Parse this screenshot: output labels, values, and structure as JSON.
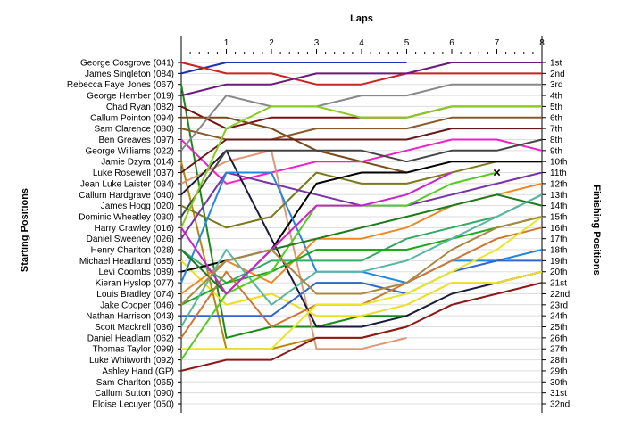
{
  "chart_data": {
    "type": "line",
    "title": "Laps",
    "ylabel": "Starting Positions",
    "y2label": "Finishing Positions",
    "x": [
      0,
      1,
      2,
      3,
      4,
      5,
      6,
      7,
      8
    ],
    "x_tick_labels": [
      "1",
      "2",
      "3",
      "4",
      "5",
      "6",
      "7",
      "8"
    ],
    "y_range": [
      1,
      32
    ],
    "grid": "horizontal",
    "starting_positions": [
      "George Cosgrove (041)",
      "James Singleton (084)",
      "Rebecca Faye Jones (067)",
      "George Hember (019)",
      "Chad Ryan (082)",
      "Callum Pointon (094)",
      "Sam Clarence (080)",
      "Ben Greaves (097)",
      "George Williams (022)",
      "Jamie Dzyra (014)",
      "Luke Rosewell (037)",
      "Jean Luke Laister (034)",
      "Callum Hardgrave (040)",
      "James Hogg (020)",
      "Dominic Wheatley (030)",
      "Harry Crawley (016)",
      "Daniel Sweeney (026)",
      "Henry Charlton (028)",
      "Michael Headland (055)",
      "Levi Coombs (089)",
      "Kieran Hyslop (077)",
      "Louis Bradley (074)",
      "Jake Cooper (046)",
      "Nathan Harrison (043)",
      "Scott Mackrell (036)",
      "Daniel Headlam (062)",
      "Thomas Taylor (099)",
      "Luke Whitworth (092)",
      "Ashley Hand (GP)",
      "Sam Charlton (065)",
      "Callum Sutton (090)",
      "Eloise Lecuyer (050)"
    ],
    "finishing_positions": [
      "1st",
      "2nd",
      "3rd",
      "4th",
      "5th",
      "6th",
      "7th",
      "8th",
      "9th",
      "10th",
      "11th",
      "12th",
      "13th",
      "14th",
      "15th",
      "16th",
      "17th",
      "18th",
      "19th",
      "20th",
      "21st",
      "22nd",
      "23rd",
      "24th",
      "25th",
      "26th",
      "27th",
      "28th",
      "29th",
      "30th",
      "31st",
      "32nd"
    ],
    "series": [
      {
        "color": "#1f2fb0",
        "values": [
          2,
          1,
          1,
          1,
          1,
          1,
          null,
          null,
          null
        ]
      },
      {
        "color": "#cc2222",
        "values": [
          1,
          2,
          2,
          3,
          3,
          2,
          2,
          2,
          2
        ]
      },
      {
        "color": "#1a8a1a",
        "values": [
          3,
          26,
          25,
          25,
          24,
          24,
          null,
          null,
          null
        ]
      },
      {
        "color": "#6a1a7a",
        "values": [
          4,
          3,
          3,
          2,
          2,
          2,
          1,
          1,
          1
        ]
      },
      {
        "color": "#7a1010",
        "values": [
          5,
          7,
          6,
          6,
          6,
          6,
          5,
          5,
          5
        ]
      },
      {
        "color": "#7a4a1a",
        "values": [
          6,
          6,
          7,
          9,
          10,
          11,
          null,
          null,
          null
        ]
      },
      {
        "color": "#8a5a2a",
        "values": [
          7,
          8,
          8,
          7,
          7,
          7,
          6,
          6,
          6
        ]
      },
      {
        "color": "#ee22cc",
        "values": [
          8,
          12,
          11,
          10,
          10,
          9,
          8,
          8,
          9
        ]
      },
      {
        "color": "#888888",
        "values": [
          9,
          4,
          5,
          5,
          4,
          4,
          3,
          3,
          3
        ]
      },
      {
        "color": "#b8860b",
        "values": [
          10,
          27,
          27,
          26,
          26,
          25,
          null,
          null,
          null
        ]
      },
      {
        "color": "#661a1a",
        "values": [
          11,
          8,
          8,
          8,
          8,
          8,
          7,
          7,
          7
        ]
      },
      {
        "color": "#dd9977",
        "values": [
          12,
          10,
          9,
          27,
          27,
          26,
          null,
          null,
          null
        ]
      },
      {
        "color": "#1a1a3a",
        "values": [
          13,
          9,
          17,
          25,
          25,
          24,
          22,
          21,
          20
        ]
      },
      {
        "color": "#7a7a1a",
        "values": [
          14,
          16,
          15,
          11,
          12,
          12,
          11,
          10,
          10
        ]
      },
      {
        "color": "#444444",
        "values": [
          15,
          9,
          9,
          9,
          9,
          10,
          9,
          9,
          8
        ]
      },
      {
        "color": "#88cc22",
        "values": [
          16,
          7,
          5,
          5,
          6,
          6,
          5,
          5,
          5
        ]
      },
      {
        "color": "#7733aa",
        "values": [
          17,
          11,
          12,
          13,
          14,
          14,
          13,
          12,
          11
        ]
      },
      {
        "color": "#33aa66",
        "values": [
          18,
          21,
          19,
          19,
          19,
          17,
          16,
          15,
          13
        ]
      },
      {
        "color": "#eedd22",
        "values": [
          19,
          23,
          22,
          24,
          24,
          23,
          21,
          21,
          20
        ]
      },
      {
        "color": "#000000",
        "values": [
          20,
          19,
          18,
          12,
          11,
          11,
          10,
          10,
          10
        ]
      },
      {
        "color": "#2288dd",
        "values": [
          21,
          11,
          11,
          20,
          20,
          21,
          19,
          19,
          18
        ]
      },
      {
        "color": "#ee8822",
        "values": [
          22,
          19,
          21,
          17,
          17,
          16,
          14,
          13,
          12
        ]
      },
      {
        "color": "#1aaa1a",
        "values": [
          23,
          21,
          20,
          18,
          18,
          18,
          17,
          16,
          15
        ]
      },
      {
        "color": "#3366cc",
        "values": [
          24,
          24,
          24,
          21,
          21,
          22,
          20,
          19,
          19
        ]
      },
      {
        "color": "#5ab5a5",
        "values": [
          25,
          18,
          23,
          20,
          20,
          19,
          17,
          15,
          13
        ]
      },
      {
        "color": "#cc7733",
        "values": [
          26,
          20,
          25,
          23,
          23,
          21,
          19,
          17,
          16
        ]
      },
      {
        "color": "#e8e822",
        "values": [
          27,
          27,
          27,
          23,
          23,
          22,
          20,
          18,
          15
        ]
      },
      {
        "color": "#8a1a1a",
        "values": [
          29,
          28,
          28,
          26,
          26,
          25,
          23,
          22,
          21
        ]
      },
      {
        "color": "#55cc22",
        "values": [
          28,
          22,
          20,
          14,
          14,
          14,
          12,
          11,
          null
        ]
      },
      {
        "color": "#1e7a1e",
        "values": [
          18,
          22,
          18,
          17,
          16,
          15,
          14,
          13,
          14
        ]
      },
      {
        "color": "#cc22cc",
        "values": [
          16,
          22,
          18,
          14,
          14,
          13,
          11,
          null,
          null
        ]
      },
      {
        "color": "#aa8844",
        "values": [
          23,
          19,
          18,
          22,
          22,
          21,
          18,
          16,
          15
        ]
      }
    ],
    "marker": {
      "lap": 7,
      "position": 11,
      "symbol": "×",
      "color": "#cc0000"
    }
  }
}
